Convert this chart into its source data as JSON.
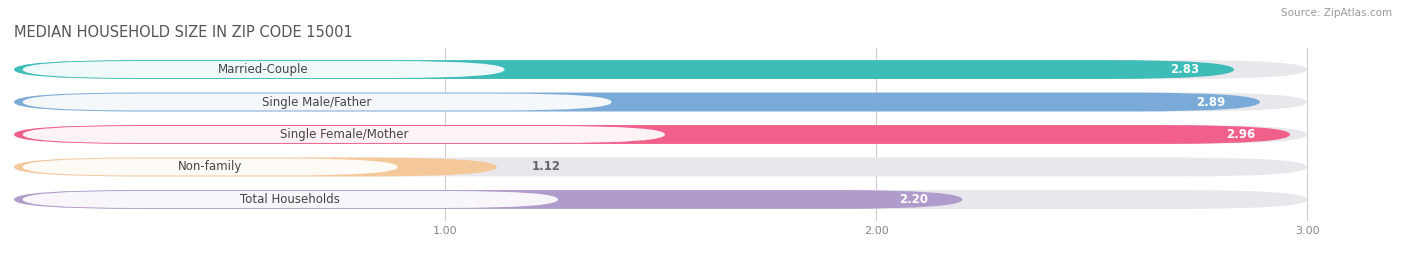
{
  "title": "MEDIAN HOUSEHOLD SIZE IN ZIP CODE 15001",
  "source": "Source: ZipAtlas.com",
  "categories": [
    "Married-Couple",
    "Single Male/Father",
    "Single Female/Mother",
    "Non-family",
    "Total Households"
  ],
  "values": [
    2.83,
    2.89,
    2.96,
    1.12,
    2.2
  ],
  "bar_colors": [
    "#3dbcb8",
    "#7aaad8",
    "#f0608a",
    "#f5c89a",
    "#b09ccc"
  ],
  "xlim": [
    0,
    3.18
  ],
  "data_max": 3.0,
  "xticks": [
    1.0,
    2.0,
    3.0
  ],
  "bar_height": 0.58,
  "background_color": "#ffffff",
  "bar_background_color": "#e8e8ec",
  "label_fontsize": 8.5,
  "value_fontsize": 8.5,
  "title_fontsize": 10.5,
  "title_color": "#555555",
  "source_color": "#999999"
}
